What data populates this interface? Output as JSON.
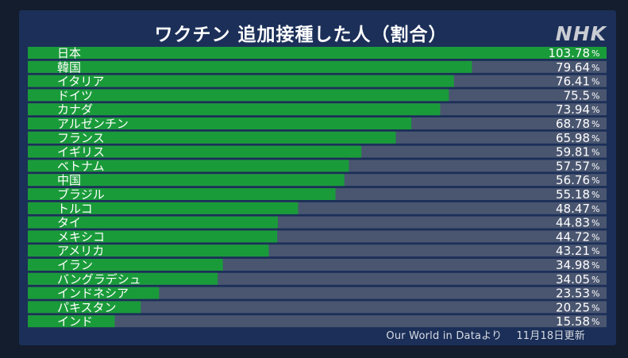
{
  "header": {
    "title": "ワクチン 追加接種した人（割合）",
    "logo": "NHK"
  },
  "footer": {
    "source": "Our World in Dataより",
    "updated": "11月18日更新"
  },
  "colors": {
    "bar_fill": "#1a9b3a",
    "bar_track": "#4a5670",
    "panel": "#1b2f58",
    "text": "#ffffff"
  },
  "chart_data": {
    "type": "bar",
    "orientation": "horizontal",
    "title": "ワクチン 追加接種した人（割合）",
    "unit": "%",
    "categories": [
      "日本",
      "韓国",
      "イタリア",
      "ドイツ",
      "カナダ",
      "アルゼンチン",
      "フランス",
      "イギリス",
      "ベトナム",
      "中国",
      "ブラジル",
      "トルコ",
      "タイ",
      "メキシコ",
      "アメリカ",
      "イラン",
      "バングラデシュ",
      "インドネシア",
      "パキスタン",
      "インド"
    ],
    "values": [
      103.78,
      79.64,
      76.41,
      75.5,
      73.94,
      68.78,
      65.98,
      59.81,
      57.57,
      56.76,
      55.18,
      48.47,
      44.83,
      44.72,
      43.21,
      34.98,
      34.05,
      23.53,
      20.25,
      15.58
    ],
    "value_labels": [
      "103.78",
      "79.64",
      "76.41",
      "75.5",
      "73.94",
      "68.78",
      "65.98",
      "59.81",
      "57.57",
      "56.76",
      "55.18",
      "48.47",
      "44.83",
      "44.72",
      "43.21",
      "34.98",
      "34.05",
      "23.53",
      "20.25",
      "15.58"
    ],
    "xlim": [
      0,
      103.78
    ],
    "grid": false,
    "legend": "none"
  }
}
